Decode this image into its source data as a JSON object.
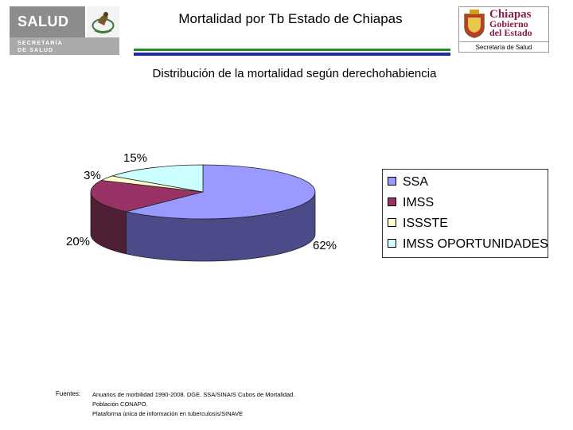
{
  "header": {
    "title": "Mortalidad por Tb Estado de Chiapas",
    "left_logo": {
      "line1": "SALUD",
      "line2": "SECRETARÍA",
      "line3": "DE SALUD"
    },
    "right_logo": {
      "line1": "Chiapas",
      "line2": "Gobierno",
      "line3": "del Estado",
      "sub": "Secretaría de Salud"
    }
  },
  "chart_data": {
    "type": "pie",
    "title": "Distribución de la mortalidad según derechohabiencia",
    "three_d": true,
    "legend_position": "right",
    "slices": [
      {
        "label": "SSA",
        "value": 62,
        "value_label": "62%",
        "color": "#9999ff",
        "side_color": "#4b4b8a"
      },
      {
        "label": "IMSS",
        "value": 20,
        "value_label": "20%",
        "color": "#993366",
        "side_color": "#4f1f36"
      },
      {
        "label": "ISSSTE",
        "value": 3,
        "value_label": "3%",
        "color": "#ffffcc",
        "side_color": "#8f8f70"
      },
      {
        "label": "IMSS OPORTUNIDADES",
        "value": 15,
        "value_label": "15%",
        "color": "#ccffff",
        "side_color": "#708f8f"
      }
    ]
  },
  "footer": {
    "label": "Fuentes:",
    "lines": [
      "Anuarios de morbilidad 1990-2008. DGE. SSA/SINAIS Cubos de Mortalidad.",
      "Población CONAPO.",
      "Plataforma única de información en tuberculosis/SINAVE"
    ]
  }
}
